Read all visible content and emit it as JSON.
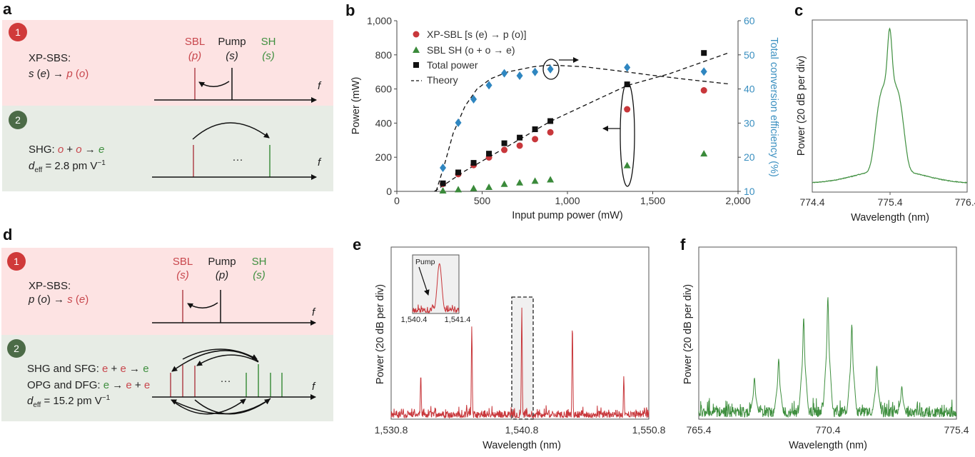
{
  "panels": {
    "a": {
      "label": "a",
      "step1": {
        "num": "1",
        "title": "XP-SBS:",
        "eq": [
          "s",
          " (",
          "e",
          ") → ",
          "p",
          " (",
          "o",
          ")"
        ],
        "sbl": "SBL",
        "sbl_sub": "(p)",
        "pump": "Pump",
        "pump_sub": "(s)",
        "sh": "SH",
        "sh_sub": "(s)",
        "f": "f"
      },
      "step2": {
        "num": "2",
        "eq1": [
          "SHG: ",
          "o",
          " + ",
          "o",
          " → ",
          "e"
        ],
        "deff": [
          "d",
          "eff",
          " = 2.8 pm V",
          "−1"
        ],
        "dots": "···",
        "f": "f"
      }
    },
    "d": {
      "label": "d",
      "step1": {
        "num": "1",
        "title": "XP-SBS:",
        "eq": [
          "p",
          " (",
          "o",
          ") → ",
          "s",
          " (",
          "e",
          ")"
        ],
        "sbl": "SBL",
        "sbl_sub": "(s)",
        "pump": "Pump",
        "pump_sub": "(p)",
        "sh": "SH",
        "sh_sub": "(s)",
        "f": "f"
      },
      "step2": {
        "num": "2",
        "eq1": [
          "SHG and SFG: ",
          "e",
          " + ",
          "e",
          " → ",
          "e"
        ],
        "eq2": [
          "OPG and DFG: ",
          "e",
          " → ",
          "e",
          " + ",
          "e"
        ],
        "deff": [
          "d",
          "eff",
          " = 15.2 pm V",
          "−1"
        ],
        "dots": "···",
        "f": "f"
      }
    }
  },
  "colors": {
    "red": "#c8474d",
    "green": "#3f8f3f",
    "blue": "#2f86c0",
    "black": "#111111",
    "pink_bg": "#fde3e3",
    "green_bg": "#e7ece5"
  },
  "chart_data": [
    {
      "panel": "b",
      "type": "scatter",
      "xlabel": "Input pump power (mW)",
      "ylabel": "Power (mW)",
      "y2label": "Total conversion efficiency (%)",
      "xlim": [
        0,
        2000
      ],
      "ylim": [
        0,
        1000
      ],
      "y2lim": [
        10,
        60
      ],
      "xticks": [
        "0",
        "500",
        "1,000",
        "1,500",
        "2,000"
      ],
      "yticks": [
        "0",
        "200",
        "400",
        "600",
        "800",
        "1,000"
      ],
      "y2ticks": [
        "10",
        "20",
        "30",
        "40",
        "50",
        "60"
      ],
      "legend_position": "top-left",
      "x": [
        270,
        360,
        450,
        540,
        630,
        720,
        810,
        900,
        1350,
        1800
      ],
      "series": [
        {
          "name": "XP-SBL [s (e) → p (o)]",
          "marker": "circle",
          "color": "#c8373b",
          "axis": "left",
          "values": [
            44,
            101,
            154,
            199,
            243,
            268,
            306,
            346,
            481,
            592
          ]
        },
        {
          "name": "SBL SH (o + o → e)",
          "marker": "triangle",
          "color": "#3a8a3a",
          "axis": "left",
          "values": [
            4,
            11,
            18,
            25,
            43,
            51,
            61,
            69,
            152,
            221
          ]
        },
        {
          "name": "Total power",
          "marker": "square",
          "color": "#111111",
          "axis": "left",
          "values": [
            47,
            111,
            167,
            221,
            282,
            315,
            364,
            412,
            627,
            811
          ]
        },
        {
          "marker": "diamond",
          "color": "#2f86c0",
          "axis": "right",
          "values": [
            16.9,
            30.1,
            37.0,
            41.1,
            44.6,
            43.9,
            45.0,
            45.8,
            46.3,
            45.1
          ]
        }
      ],
      "theory": {
        "name": "Theory",
        "power_curve": {
          "x": [
            220,
            400,
            600,
            900,
            1200,
            1350,
            1600,
            1940
          ],
          "y": [
            0,
            120,
            235,
            410,
            550,
            620,
            690,
            810
          ]
        },
        "efficiency_curve": {
          "x": [
            230,
            280,
            330,
            400,
            470,
            550,
            650,
            800,
            900,
            1100,
            1300,
            1500,
            1700,
            1940
          ],
          "y": [
            10,
            18,
            27,
            35,
            40,
            43,
            45,
            46.5,
            47,
            46.5,
            45.3,
            44,
            42.8,
            41.5
          ]
        }
      }
    },
    {
      "panel": "c",
      "type": "line",
      "xlabel": "Wavelength (nm)",
      "ylabel": "Power (20 dB per div)",
      "xlim": [
        774.4,
        776.4
      ],
      "xticks": [
        "774.4",
        "775.4",
        "776.4"
      ],
      "color": "#3f8f3f",
      "peaks": [
        {
          "center": 775.4,
          "relative_level": 0.85
        }
      ],
      "noise_floor_relative": 0.05
    },
    {
      "panel": "e",
      "type": "line",
      "xlabel": "Wavelength (nm)",
      "ylabel": "Power (20 dB per div)",
      "xlim": [
        1530.8,
        1550.8
      ],
      "xticks": [
        "1,530.8",
        "1,540.8",
        "1,550.8"
      ],
      "color": "#c8373b",
      "peaks": [
        {
          "center": 1533.1,
          "relative_level": 0.26
        },
        {
          "center": 1537.06,
          "relative_level": 0.54
        },
        {
          "center": 1540.94,
          "relative_level": 0.65
        },
        {
          "center": 1544.87,
          "relative_level": 0.55
        },
        {
          "center": 1548.86,
          "relative_level": 0.25
        }
      ],
      "noise_floor_relative": 0.04,
      "inset": {
        "xlim": [
          1540.4,
          1541.4
        ],
        "xticks": [
          "1,540.4",
          "1,541.4"
        ],
        "annotation": "Pump"
      }
    },
    {
      "panel": "f",
      "type": "line",
      "xlabel": "Wavelength (nm)",
      "ylabel": "Power (20 dB per div)",
      "xlim": [
        765.4,
        775.4
      ],
      "xticks": [
        "765.4",
        "770.4",
        "775.4"
      ],
      "color": "#3f8f3f",
      "peaks": [
        {
          "center": 767.56,
          "relative_level": 0.24
        },
        {
          "center": 768.5,
          "relative_level": 0.35
        },
        {
          "center": 769.47,
          "relative_level": 0.59
        },
        {
          "center": 770.41,
          "relative_level": 0.71
        },
        {
          "center": 771.34,
          "relative_level": 0.55
        },
        {
          "center": 772.31,
          "relative_level": 0.31
        },
        {
          "center": 773.28,
          "relative_level": 0.19
        }
      ],
      "noise_floor_relative": 0.06
    }
  ],
  "panel_labels": {
    "b": "b",
    "c": "c",
    "e": "e",
    "f": "f"
  }
}
